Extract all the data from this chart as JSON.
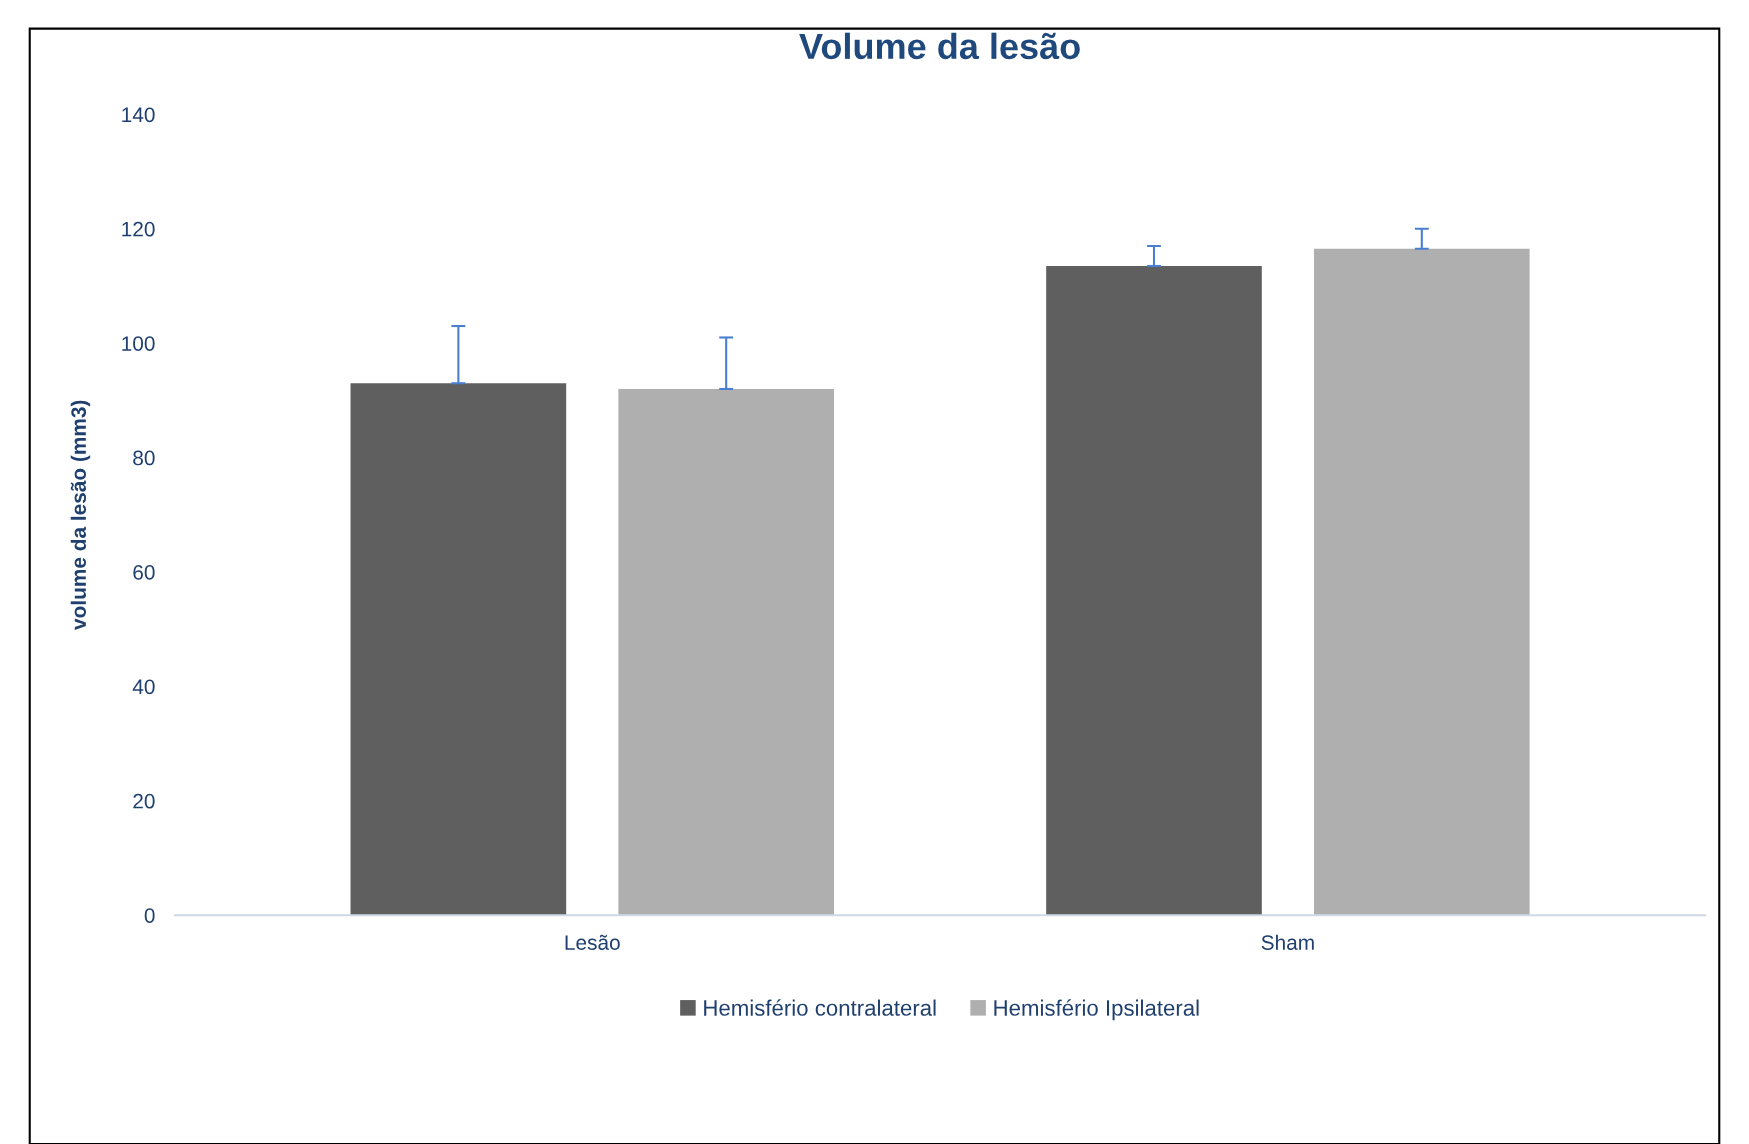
{
  "chart_data": {
    "type": "bar",
    "title": "Volume da lesão",
    "ylabel": "volume da lesão (mm3)",
    "categories": [
      "Lesão",
      "Sham"
    ],
    "series": [
      {
        "name": "Hemisfério contralateral",
        "color": "#5f5f5f",
        "values": [
          93,
          113.5
        ],
        "errors": [
          [
            93,
            103
          ],
          [
            113.5,
            117
          ]
        ]
      },
      {
        "name": "Hemisfério Ipsilateral",
        "color": "#afafaf",
        "values": [
          92,
          116.5
        ],
        "errors": [
          [
            92,
            101
          ],
          [
            116.5,
            120
          ]
        ]
      }
    ],
    "ylim": [
      0,
      140
    ],
    "yticks": [
      0,
      20,
      40,
      60,
      80,
      100,
      120,
      140
    ],
    "grid": false,
    "legend": "bottom"
  }
}
